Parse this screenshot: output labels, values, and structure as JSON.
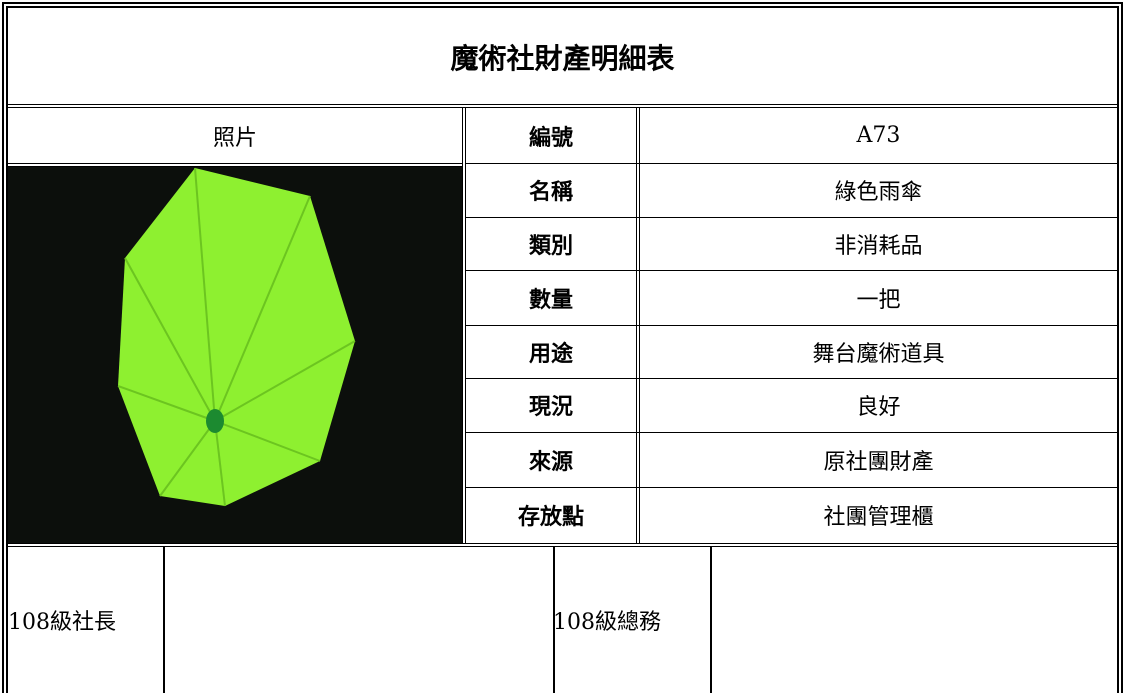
{
  "title": "魔術社財產明細表",
  "table": {
    "photo_header": "照片",
    "rows": [
      [
        "編號",
        "A73"
      ],
      [
        "名稱",
        "綠色雨傘"
      ],
      [
        "類別",
        "非消耗品"
      ],
      [
        "數量",
        "一把"
      ],
      [
        "用途",
        "舞台魔術道具"
      ],
      [
        "現況",
        "良好"
      ],
      [
        "來源",
        "原社團財產"
      ],
      [
        "存放點",
        "社團管理櫃"
      ]
    ]
  },
  "signatures": [
    "108級社長",
    "108級總務"
  ]
}
